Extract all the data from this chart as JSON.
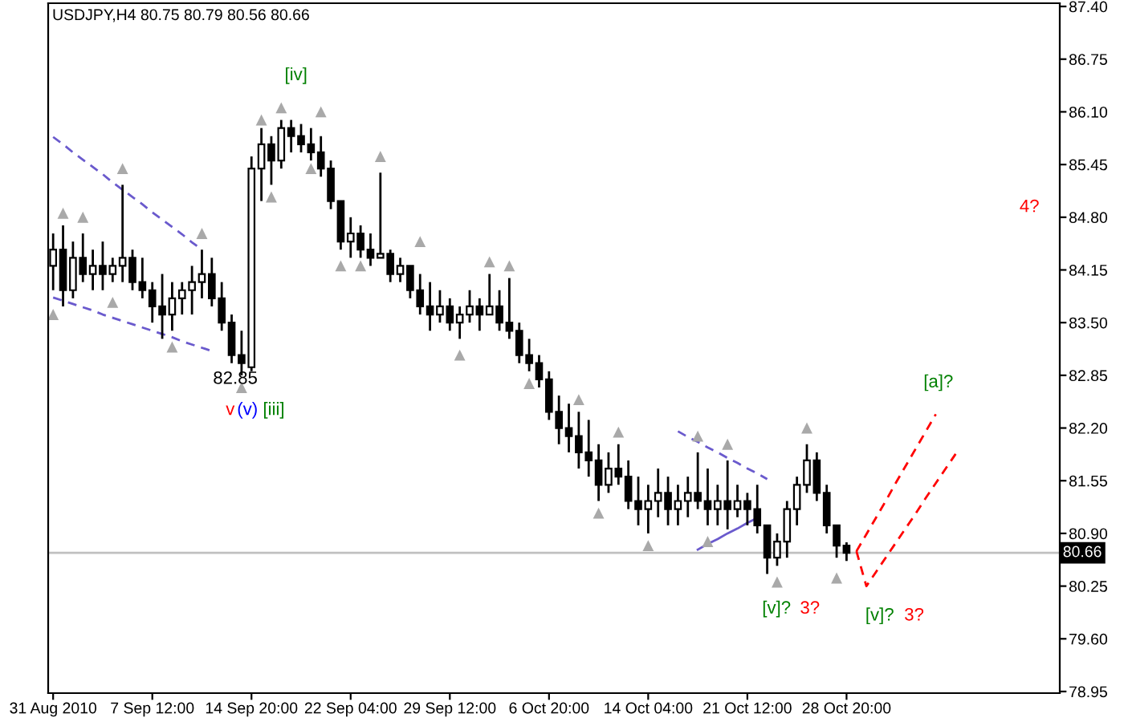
{
  "chart_data": {
    "type": "candlestick",
    "title": "USDJPY,H4 80.75 80.79 80.56 80.66",
    "categories": [
      "31 Aug 2010",
      null,
      null,
      null,
      null,
      null,
      null,
      null,
      null,
      null,
      "7 Sep 12:00",
      null,
      null,
      null,
      null,
      null,
      null,
      null,
      null,
      null,
      "14 Sep 20:00",
      null,
      null,
      null,
      null,
      null,
      null,
      null,
      null,
      null,
      "22 Sep 04:00",
      null,
      null,
      null,
      null,
      null,
      null,
      null,
      null,
      null,
      "29 Sep 12:00",
      null,
      null,
      null,
      null,
      null,
      null,
      null,
      null,
      null,
      "6 Oct 20:00",
      null,
      null,
      null,
      null,
      null,
      null,
      null,
      null,
      null,
      "14 Oct 04:00",
      null,
      null,
      null,
      null,
      null,
      null,
      null,
      null,
      null,
      "21 Oct 12:00",
      null,
      null,
      null,
      null,
      null,
      null,
      null,
      null,
      null,
      "28 Oct 20:00",
      null,
      null,
      null,
      null,
      null,
      null,
      null,
      null,
      null,
      null,
      null,
      null,
      null,
      null,
      null,
      null,
      null,
      null,
      null,
      null,
      null
    ],
    "ohlc": [
      [
        84.2,
        84.6,
        83.9,
        84.4
      ],
      [
        84.4,
        84.7,
        83.7,
        83.9
      ],
      [
        83.9,
        84.5,
        83.8,
        84.3
      ],
      [
        84.3,
        84.6,
        84.0,
        84.1
      ],
      [
        84.1,
        84.4,
        83.9,
        84.2
      ],
      [
        84.2,
        84.5,
        83.9,
        84.1
      ],
      [
        84.1,
        84.3,
        84.0,
        84.2
      ],
      [
        84.2,
        85.2,
        84.0,
        84.3
      ],
      [
        84.3,
        84.4,
        83.9,
        84.0
      ],
      [
        84.0,
        84.3,
        83.8,
        83.9
      ],
      [
        83.9,
        84.0,
        83.5,
        83.7
      ],
      [
        83.7,
        84.1,
        83.3,
        83.6
      ],
      [
        83.6,
        84.0,
        83.4,
        83.8
      ],
      [
        83.8,
        84.0,
        83.6,
        83.9
      ],
      [
        83.9,
        84.2,
        83.6,
        84.0
      ],
      [
        84.0,
        84.4,
        83.8,
        84.1
      ],
      [
        84.1,
        84.3,
        83.7,
        83.8
      ],
      [
        83.8,
        84.0,
        83.4,
        83.5
      ],
      [
        83.5,
        83.6,
        83.0,
        83.1
      ],
      [
        83.1,
        83.4,
        82.85,
        83.0
      ],
      [
        82.95,
        85.55,
        82.9,
        85.4
      ],
      [
        85.4,
        85.9,
        85.0,
        85.7
      ],
      [
        85.7,
        85.8,
        85.2,
        85.5
      ],
      [
        85.5,
        86.0,
        85.4,
        85.9
      ],
      [
        85.9,
        86.0,
        85.6,
        85.8
      ],
      [
        85.8,
        85.95,
        85.6,
        85.7
      ],
      [
        85.7,
        85.9,
        85.5,
        85.6
      ],
      [
        85.6,
        85.8,
        85.3,
        85.4
      ],
      [
        85.4,
        85.5,
        84.9,
        85.0
      ],
      [
        85.0,
        85.0,
        84.4,
        84.5
      ],
      [
        84.5,
        84.8,
        84.3,
        84.6
      ],
      [
        84.6,
        84.7,
        84.3,
        84.4
      ],
      [
        84.4,
        84.6,
        84.2,
        84.3
      ],
      [
        84.3,
        85.35,
        84.3,
        84.35
      ],
      [
        84.35,
        84.4,
        84.0,
        84.1
      ],
      [
        84.1,
        84.3,
        84.0,
        84.2
      ],
      [
        84.2,
        84.2,
        83.8,
        83.9
      ],
      [
        83.9,
        84.1,
        83.6,
        83.7
      ],
      [
        83.7,
        84.0,
        83.4,
        83.6
      ],
      [
        83.6,
        83.9,
        83.5,
        83.7
      ],
      [
        83.7,
        83.8,
        83.4,
        83.5
      ],
      [
        83.5,
        83.7,
        83.3,
        83.6
      ],
      [
        83.6,
        83.9,
        83.5,
        83.7
      ],
      [
        83.7,
        83.8,
        83.4,
        83.6
      ],
      [
        83.6,
        84.1,
        83.6,
        83.7
      ],
      [
        83.7,
        83.9,
        83.4,
        83.5
      ],
      [
        83.5,
        84.05,
        83.3,
        83.4
      ],
      [
        83.4,
        83.5,
        83.0,
        83.1
      ],
      [
        83.1,
        83.3,
        82.9,
        83.0
      ],
      [
        83.0,
        83.1,
        82.7,
        82.8
      ],
      [
        82.8,
        82.9,
        82.3,
        82.4
      ],
      [
        82.4,
        82.6,
        82.0,
        82.2
      ],
      [
        82.2,
        82.5,
        81.9,
        82.1
      ],
      [
        82.1,
        82.4,
        81.7,
        81.9
      ],
      [
        81.9,
        82.3,
        81.6,
        81.8
      ],
      [
        81.8,
        82.0,
        81.3,
        81.5
      ],
      [
        81.5,
        81.9,
        81.4,
        81.7
      ],
      [
        81.7,
        82.0,
        81.5,
        81.6
      ],
      [
        81.6,
        81.8,
        81.2,
        81.3
      ],
      [
        81.3,
        81.6,
        81.0,
        81.2
      ],
      [
        81.2,
        81.5,
        80.9,
        81.3
      ],
      [
        81.3,
        81.7,
        81.1,
        81.4
      ],
      [
        81.4,
        81.6,
        81.0,
        81.2
      ],
      [
        81.2,
        81.5,
        81.0,
        81.3
      ],
      [
        81.3,
        81.6,
        81.1,
        81.4
      ],
      [
        81.4,
        81.9,
        81.2,
        81.3
      ],
      [
        81.3,
        81.7,
        81.0,
        81.2
      ],
      [
        81.2,
        81.5,
        81.0,
        81.3
      ],
      [
        81.3,
        81.8,
        80.95,
        81.2
      ],
      [
        81.2,
        81.5,
        81.1,
        81.3
      ],
      [
        81.3,
        81.4,
        81.0,
        81.2
      ],
      [
        81.2,
        81.5,
        80.9,
        81.0
      ],
      [
        81.0,
        81.0,
        80.4,
        80.6
      ],
      [
        80.6,
        80.9,
        80.5,
        80.8
      ],
      [
        80.8,
        81.3,
        80.6,
        81.2
      ],
      [
        81.2,
        81.6,
        81.0,
        81.5
      ],
      [
        81.5,
        82.0,
        81.4,
        81.8
      ],
      [
        81.8,
        81.9,
        81.3,
        81.4
      ],
      [
        81.4,
        81.5,
        80.9,
        81.0
      ],
      [
        81.0,
        81.0,
        80.6,
        80.75
      ],
      [
        80.75,
        80.79,
        80.56,
        80.66
      ],
      null,
      null,
      null,
      null,
      null,
      null,
      null,
      null,
      null,
      null,
      null,
      null,
      null,
      null,
      null,
      null,
      null,
      null,
      null,
      null,
      null
    ],
    "series": [
      {
        "type": "line",
        "color": "#6a5acd",
        "line_style": "dashed",
        "values": [
          85.79,
          85.7,
          85.6,
          85.51,
          85.42,
          85.33,
          85.23,
          85.14,
          85.05,
          84.96,
          84.86,
          84.77,
          84.68,
          84.59,
          84.49,
          84.4,
          null,
          null,
          null,
          null,
          null,
          null,
          null,
          null,
          null,
          null,
          null,
          null,
          null,
          null,
          null,
          null,
          null,
          null,
          null,
          null,
          null,
          null,
          null,
          null,
          null,
          null,
          null,
          null,
          null,
          null,
          null,
          null,
          null,
          null,
          null,
          null,
          null,
          null,
          null,
          null,
          null,
          null,
          null,
          null,
          null,
          null,
          null,
          null,
          null,
          null,
          null,
          null,
          null,
          null,
          null,
          null,
          null,
          null,
          null,
          null,
          null,
          null,
          null,
          null,
          null,
          null,
          null,
          null,
          null,
          null,
          null,
          null,
          null,
          null,
          null,
          null,
          null,
          null,
          null,
          null,
          null,
          null,
          null,
          null,
          null,
          null
        ]
      },
      {
        "type": "line",
        "color": "#6a5acd",
        "line_style": "dashed",
        "values": [
          83.81,
          83.77,
          83.73,
          83.69,
          83.65,
          83.6,
          83.56,
          83.52,
          83.48,
          83.44,
          83.4,
          83.36,
          83.32,
          83.27,
          83.23,
          83.19,
          83.15,
          null,
          null,
          null,
          null,
          null,
          null,
          null,
          null,
          null,
          null,
          null,
          null,
          null,
          null,
          null,
          null,
          null,
          null,
          null,
          null,
          null,
          null,
          null,
          null,
          null,
          null,
          null,
          null,
          null,
          null,
          null,
          null,
          null,
          null,
          null,
          null,
          null,
          null,
          null,
          null,
          null,
          null,
          null,
          null,
          null,
          null,
          null,
          null,
          null,
          null,
          null,
          null,
          null,
          null,
          null,
          null,
          null,
          null,
          null,
          null,
          null,
          null,
          null,
          null,
          null,
          null,
          null,
          null,
          null,
          null,
          null,
          null,
          null,
          null,
          null,
          null,
          null,
          null,
          null,
          null,
          null,
          null,
          null,
          null,
          null
        ]
      },
      {
        "type": "line",
        "color": "#6a5acd",
        "line_style": "dashed",
        "values": [
          null,
          null,
          null,
          null,
          null,
          null,
          null,
          null,
          null,
          null,
          null,
          null,
          null,
          null,
          null,
          null,
          null,
          null,
          null,
          null,
          null,
          null,
          null,
          null,
          null,
          null,
          null,
          null,
          null,
          null,
          null,
          null,
          null,
          null,
          null,
          null,
          null,
          null,
          null,
          null,
          null,
          null,
          null,
          null,
          null,
          null,
          null,
          null,
          null,
          null,
          null,
          null,
          null,
          null,
          null,
          null,
          null,
          null,
          null,
          null,
          null,
          null,
          null,
          82.16,
          82.09,
          82.03,
          81.96,
          81.9,
          81.83,
          81.77,
          81.7,
          81.64,
          81.57,
          null,
          null,
          null,
          null,
          null,
          null,
          null,
          null,
          null,
          null,
          null,
          null,
          null,
          null,
          null,
          null,
          null,
          null,
          null,
          null,
          null,
          null,
          null,
          null,
          null,
          null,
          null,
          null,
          null
        ]
      },
      {
        "type": "line",
        "color": "#6a5acd",
        "line_style": "solid",
        "values": [
          null,
          null,
          null,
          null,
          null,
          null,
          null,
          null,
          null,
          null,
          null,
          null,
          null,
          null,
          null,
          null,
          null,
          null,
          null,
          null,
          null,
          null,
          null,
          null,
          null,
          null,
          null,
          null,
          null,
          null,
          null,
          null,
          null,
          null,
          null,
          null,
          null,
          null,
          null,
          null,
          null,
          null,
          null,
          null,
          null,
          null,
          null,
          null,
          null,
          null,
          null,
          null,
          null,
          null,
          null,
          null,
          null,
          null,
          null,
          null,
          null,
          null,
          null,
          null,
          null,
          80.7,
          80.77,
          80.83,
          80.9,
          80.96,
          81.03,
          81.09,
          null,
          null,
          null,
          null,
          null,
          null,
          null,
          null,
          null,
          null,
          null,
          null,
          null,
          null,
          null,
          null,
          null,
          null,
          null,
          null,
          null,
          null,
          null,
          null,
          null,
          null,
          null,
          null,
          null,
          null
        ]
      },
      {
        "type": "line",
        "color": "#ff0000",
        "line_style": "dashed",
        "values": [
          null,
          null,
          null,
          null,
          null,
          null,
          null,
          null,
          null,
          null,
          null,
          null,
          null,
          null,
          null,
          null,
          null,
          null,
          null,
          null,
          null,
          null,
          null,
          null,
          null,
          null,
          null,
          null,
          null,
          null,
          null,
          null,
          null,
          null,
          null,
          null,
          null,
          null,
          null,
          null,
          null,
          null,
          null,
          null,
          null,
          null,
          null,
          null,
          null,
          null,
          null,
          null,
          null,
          null,
          null,
          null,
          null,
          null,
          null,
          null,
          null,
          null,
          null,
          null,
          null,
          null,
          null,
          null,
          null,
          null,
          null,
          null,
          null,
          null,
          null,
          null,
          null,
          null,
          null,
          null,
          null,
          80.68,
          80.89,
          81.1,
          81.31,
          81.53,
          81.74,
          81.95,
          82.16,
          82.37,
          null,
          null,
          null,
          null,
          null,
          null,
          null,
          null,
          null,
          null,
          null,
          null
        ]
      },
      {
        "type": "line",
        "color": "#ff0000",
        "line_style": "dashed",
        "values": [
          null,
          null,
          null,
          null,
          null,
          null,
          null,
          null,
          null,
          null,
          null,
          null,
          null,
          null,
          null,
          null,
          null,
          null,
          null,
          null,
          null,
          null,
          null,
          null,
          null,
          null,
          null,
          null,
          null,
          null,
          null,
          null,
          null,
          null,
          null,
          null,
          null,
          null,
          null,
          null,
          null,
          null,
          null,
          null,
          null,
          null,
          null,
          null,
          null,
          null,
          null,
          null,
          null,
          null,
          null,
          null,
          null,
          null,
          null,
          null,
          null,
          null,
          null,
          null,
          null,
          null,
          null,
          null,
          null,
          null,
          null,
          null,
          null,
          null,
          null,
          null,
          null,
          null,
          null,
          null,
          null,
          80.68,
          80.25,
          80.43,
          80.61,
          80.79,
          80.97,
          81.15,
          81.34,
          81.52,
          81.7,
          81.88,
          null,
          null,
          null,
          null,
          null,
          null,
          null,
          null,
          null,
          null
        ]
      },
      {
        "type": "scatter",
        "color": "#a9a9a9",
        "marker": "triangle",
        "values": [
          null,
          84.85,
          null,
          84.8,
          null,
          null,
          null,
          85.4,
          null,
          null,
          null,
          null,
          null,
          null,
          null,
          84.6,
          null,
          null,
          null,
          null,
          null,
          86.0,
          null,
          86.15,
          null,
          null,
          null,
          86.1,
          null,
          null,
          null,
          null,
          null,
          85.55,
          null,
          null,
          null,
          84.5,
          null,
          null,
          null,
          null,
          null,
          null,
          84.25,
          null,
          84.2,
          null,
          null,
          null,
          null,
          null,
          null,
          82.55,
          null,
          null,
          null,
          82.15,
          null,
          null,
          null,
          null,
          null,
          null,
          null,
          82.1,
          null,
          null,
          82.0,
          null,
          null,
          null,
          null,
          null,
          null,
          null,
          82.2,
          null,
          null,
          null,
          null,
          null,
          null,
          null,
          null,
          null,
          null,
          null,
          null,
          null,
          null,
          null,
          null,
          null,
          null,
          null,
          null,
          null,
          null,
          null,
          null,
          null
        ]
      },
      {
        "type": "scatter",
        "color": "#a9a9a9",
        "marker": "triangle",
        "values": [
          83.6,
          null,
          null,
          null,
          null,
          null,
          83.75,
          null,
          null,
          null,
          null,
          null,
          83.2,
          null,
          null,
          null,
          null,
          null,
          null,
          82.7,
          null,
          null,
          85.05,
          null,
          null,
          null,
          85.4,
          null,
          null,
          84.2,
          null,
          84.2,
          null,
          null,
          null,
          null,
          null,
          null,
          null,
          null,
          null,
          83.1,
          null,
          null,
          null,
          null,
          null,
          null,
          82.75,
          null,
          null,
          null,
          null,
          null,
          null,
          81.15,
          null,
          null,
          null,
          null,
          80.75,
          null,
          null,
          null,
          null,
          null,
          80.8,
          null,
          null,
          null,
          null,
          null,
          null,
          80.3,
          null,
          null,
          null,
          null,
          null,
          80.35,
          null,
          null,
          null,
          null,
          null,
          null,
          null,
          null,
          null,
          null,
          null,
          null,
          null,
          null,
          null,
          null,
          null,
          null,
          null,
          null,
          null,
          null
        ]
      }
    ],
    "ylim": [
      78.93,
      87.44
    ],
    "yticks": [
      78.95,
      {
        "value": 79.6,
        "label": "79.60"
      },
      80.25,
      {
        "value": 80.9,
        "label": "80.90"
      },
      81.55,
      {
        "value": 82.2,
        "label": "82.20"
      },
      82.85,
      {
        "value": 83.5,
        "label": "83.50"
      },
      84.15,
      {
        "value": 84.8,
        "label": "84.80"
      },
      85.45,
      {
        "value": 86.1,
        "label": "86.10"
      },
      86.75,
      {
        "value": 87.4,
        "label": "87.40"
      }
    ],
    "ref_lines": [
      {
        "axis": "y",
        "value": 80.66,
        "label": "80.66",
        "color": "#c0c0c0"
      }
    ],
    "annotations": [
      "[iv]",
      "82.85",
      "v",
      "(v)",
      "[iii]",
      "[v]?",
      "3?",
      "[v]?",
      "3?",
      "[a]?",
      "4?"
    ],
    "grid": false,
    "legend": false
  }
}
